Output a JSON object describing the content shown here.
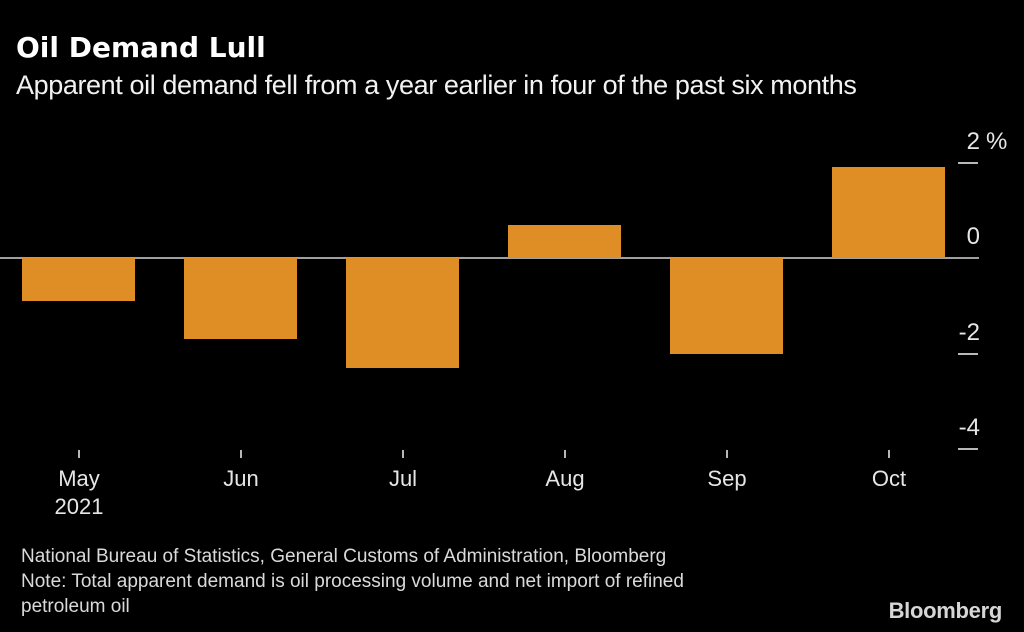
{
  "title": "Oil Demand Lull",
  "subtitle": "Apparent oil demand fell from a year earlier in four of the past six months",
  "source_line": "National Bureau of Statistics, General Customs of Administration, Bloomberg",
  "note_line1": "Note: Total apparent demand is oil processing volume and net import of refined",
  "note_line2": "petroleum oil",
  "logo": "Bloomberg",
  "colors": {
    "background": "#000000",
    "bar": "#df8e26",
    "axis_line": "#a0a0a0",
    "tick": "#b8b8b8",
    "axis_text": "#e6e6e6",
    "title_text": "#ffffff",
    "footer_text": "#dadada"
  },
  "chart_data": {
    "type": "bar",
    "categories": [
      "May",
      "Jun",
      "Jul",
      "Aug",
      "Sep",
      "Oct"
    ],
    "x_first_category_sub_label": "2021",
    "values": [
      -0.9,
      -1.7,
      -2.3,
      0.7,
      -2.0,
      1.9
    ],
    "unit": "%",
    "title": "Oil Demand Lull",
    "xlabel": "",
    "ylabel": "%",
    "y_ticks": [
      2,
      0,
      -2,
      -4
    ],
    "ylim": [
      -4.6,
      2.4
    ],
    "grid": "off",
    "legend_position": "none",
    "axis_side": "right"
  }
}
